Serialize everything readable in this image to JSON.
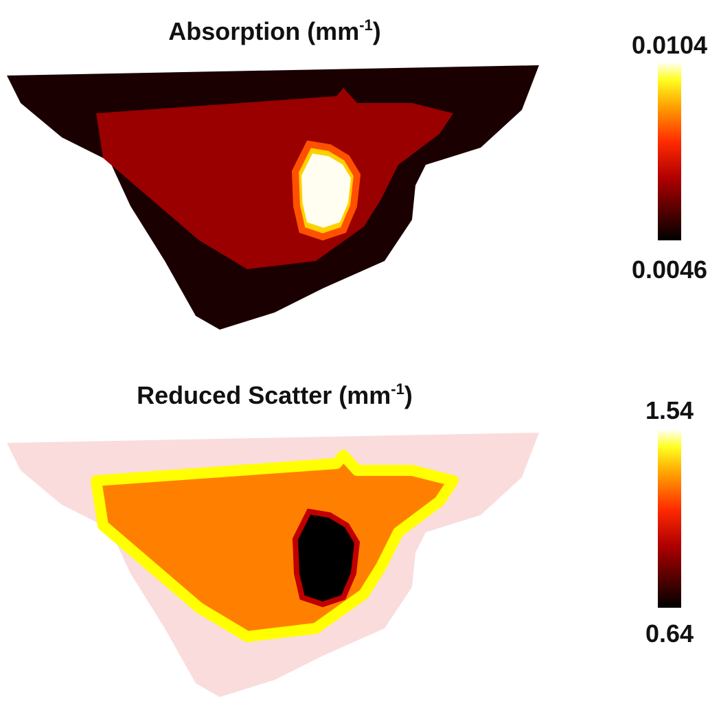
{
  "panels": [
    {
      "title": "Absorption (mm",
      "title_sup": "-1",
      "title_end": ")",
      "colorbar": {
        "max": "0.0104",
        "min": "0.0046"
      }
    },
    {
      "title": "Reduced Scatter (mm",
      "title_sup": "-1",
      "title_end": ")",
      "colorbar": {
        "max": "1.54",
        "min": "0.64"
      }
    }
  ]
}
